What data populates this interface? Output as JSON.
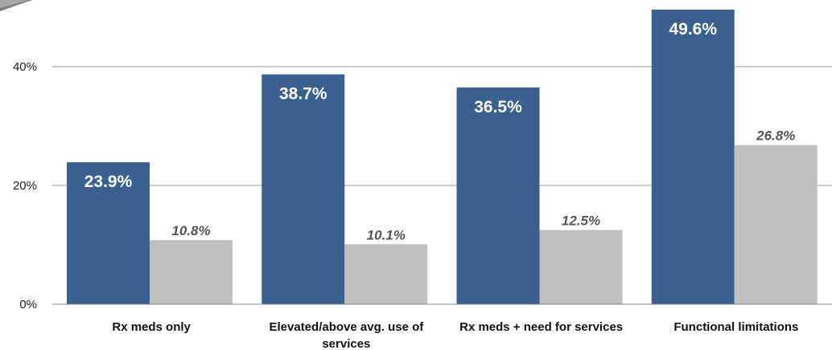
{
  "chart_data": {
    "type": "bar",
    "categories": [
      [
        "Rx meds only"
      ],
      [
        "Elevated/above avg. use of",
        "services"
      ],
      [
        "Rx meds + need for services"
      ],
      [
        "Functional limitations"
      ]
    ],
    "series": [
      {
        "values": [
          23.9,
          38.7,
          36.5,
          49.6
        ],
        "labels": [
          "23.9%",
          "38.7%",
          "36.5%",
          "49.6%"
        ],
        "color": "#3a6090"
      },
      {
        "values": [
          10.8,
          10.1,
          12.5,
          26.8
        ],
        "labels": [
          "10.8%",
          "10.1%",
          "12.5%",
          "26.8%"
        ],
        "color": "#bfbfbf"
      }
    ],
    "ylim": [
      0,
      50
    ],
    "yticks": [
      0,
      20,
      40
    ],
    "ytick_labels": [
      "0%",
      "20%",
      "40%"
    ],
    "grid": true,
    "legend": "none"
  }
}
